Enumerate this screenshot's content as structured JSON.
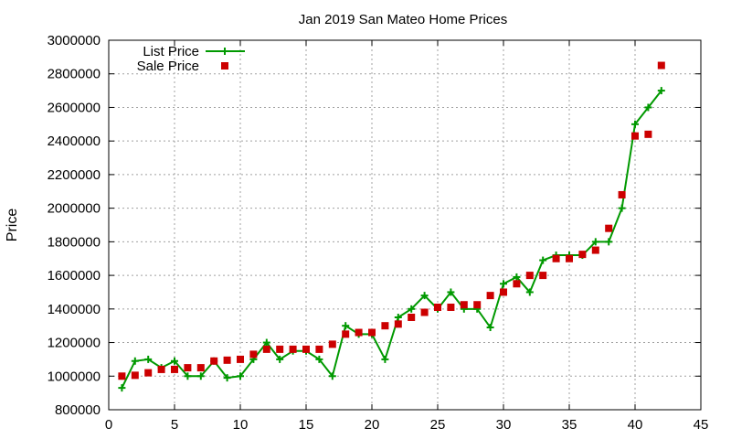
{
  "chart_data": {
    "type": "line",
    "title": "Jan 2019 San Mateo Home Prices",
    "xlabel": "",
    "ylabel": "Price",
    "xlim": [
      0,
      45
    ],
    "ylim": [
      800000,
      3000000
    ],
    "x_ticks": [
      "0",
      "5",
      "10",
      "15",
      "20",
      "25",
      "30",
      "35",
      "40",
      "45"
    ],
    "y_ticks": [
      "800000",
      "1000000",
      "1200000",
      "1400000",
      "1600000",
      "1800000",
      "2000000",
      "2200000",
      "2400000",
      "2600000",
      "2800000",
      "3000000"
    ],
    "grid": true,
    "legend_position": "top-left",
    "series": [
      {
        "name": "List Price",
        "style": "line-plus",
        "color": "#009900",
        "x": [
          1,
          2,
          3,
          4,
          5,
          6,
          7,
          8,
          9,
          10,
          11,
          12,
          13,
          14,
          15,
          16,
          17,
          18,
          19,
          20,
          21,
          22,
          23,
          24,
          25,
          26,
          27,
          28,
          29,
          30,
          31,
          32,
          33,
          34,
          35,
          36,
          37,
          38,
          39,
          40,
          41,
          42
        ],
        "y": [
          930000,
          1090000,
          1100000,
          1050000,
          1090000,
          1000000,
          1000000,
          1090000,
          990000,
          1000000,
          1100000,
          1200000,
          1100000,
          1150000,
          1150000,
          1100000,
          1000000,
          1300000,
          1250000,
          1250000,
          1100000,
          1350000,
          1400000,
          1480000,
          1400000,
          1500000,
          1400000,
          1400000,
          1290000,
          1550000,
          1590000,
          1500000,
          1690000,
          1720000,
          1720000,
          1720000,
          1800000,
          1800000,
          2000000,
          2500000,
          2600000,
          2700000
        ]
      },
      {
        "name": "Sale Price",
        "style": "points-square",
        "color": "#cc0000",
        "x": [
          1,
          2,
          3,
          4,
          5,
          6,
          7,
          8,
          9,
          10,
          11,
          12,
          13,
          14,
          15,
          16,
          17,
          18,
          19,
          20,
          21,
          22,
          23,
          24,
          25,
          26,
          27,
          28,
          29,
          30,
          31,
          32,
          33,
          34,
          35,
          36,
          37,
          38,
          39,
          40,
          41,
          42
        ],
        "y": [
          1000000,
          1005000,
          1020000,
          1040000,
          1040000,
          1050000,
          1050000,
          1090000,
          1095000,
          1100000,
          1130000,
          1160000,
          1160000,
          1160000,
          1160000,
          1160000,
          1190000,
          1250000,
          1260000,
          1260000,
          1300000,
          1310000,
          1350000,
          1380000,
          1410000,
          1410000,
          1425000,
          1425000,
          1480000,
          1500000,
          1550000,
          1600000,
          1600000,
          1700000,
          1700000,
          1725000,
          1750000,
          1880000,
          2080000,
          2430000,
          2440000,
          2850000
        ]
      }
    ]
  }
}
